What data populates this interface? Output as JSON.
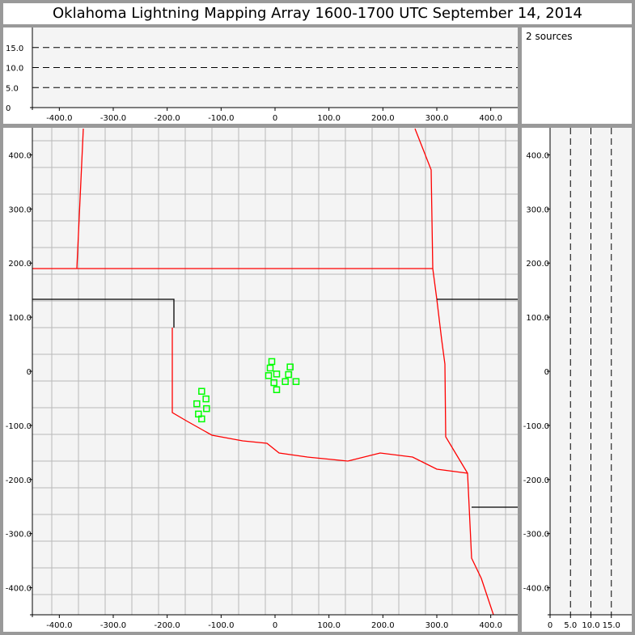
{
  "title": "Oklahoma Lightning Mapping Array   1600-1700 UTC  September 14, 2014",
  "source_count": "2 sources",
  "chart_data": [
    {
      "type": "line",
      "name": "altitude-vs-x",
      "xlim": [
        -450,
        450
      ],
      "ylim": [
        0,
        20
      ],
      "xticks": [
        "-400.0",
        "-300.0",
        "-200.0",
        "-100.0",
        "0",
        "100.0",
        "200.0",
        "300.0",
        "400.0"
      ],
      "yticks": [
        "0",
        "5.0",
        "10.0",
        "15.0"
      ],
      "reference_lines": [
        5,
        10,
        15
      ]
    },
    {
      "type": "scatter",
      "name": "plan-view-map",
      "xlim": [
        -450,
        450
      ],
      "ylim": [
        -450,
        450
      ],
      "xticks": [
        "-400.0",
        "-300.0",
        "-200.0",
        "-100.0",
        "0",
        "100.0",
        "200.0",
        "300.0",
        "400.0"
      ],
      "yticks": [
        "-400.0",
        "-300.0",
        "-200.0",
        "-100.0",
        "0",
        "100.0",
        "200.0",
        "300.0",
        "400.0"
      ],
      "marker_color": "#00ff00",
      "border_color": "#ff0000",
      "points": [
        [
          -6,
          18
        ],
        [
          -9,
          6
        ],
        [
          -12,
          -8
        ],
        [
          3,
          -5
        ],
        [
          -2,
          -21
        ],
        [
          3,
          -34
        ],
        [
          28,
          8
        ],
        [
          25,
          -6
        ],
        [
          19,
          -19
        ],
        [
          39,
          -19
        ],
        [
          -136,
          -37
        ],
        [
          -128,
          -51
        ],
        [
          -145,
          -60
        ],
        [
          -127,
          -69
        ],
        [
          -142,
          -79
        ],
        [
          -136,
          -88
        ]
      ]
    },
    {
      "type": "line",
      "name": "altitude-vs-y",
      "xlim": [
        0,
        20
      ],
      "ylim": [
        -450,
        450
      ],
      "xticks": [
        "0",
        "5.0",
        "10.0",
        "15.0"
      ],
      "reference_lines": [
        5,
        10,
        15
      ]
    }
  ]
}
